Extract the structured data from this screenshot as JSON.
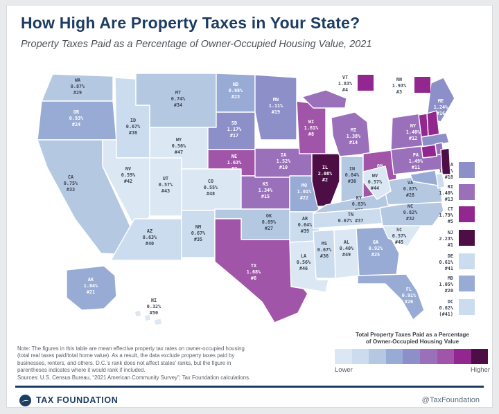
{
  "title": "How High Are Property Taxes in Your State?",
  "subtitle": "Property Taxes Paid as a Percentage of Owner-Occupied Housing Value, 2021",
  "colors": {
    "accent_navy": "#1d3c63",
    "label_dark": "#3d4654",
    "label_light": "#ffffff",
    "scale": [
      "#dbe7f3",
      "#cbdcee",
      "#b5c8e2",
      "#98abd5",
      "#8d90c8",
      "#9a70bb",
      "#a155a8",
      "#92278f",
      "#4c0e44"
    ]
  },
  "chart_data": {
    "type": "heatmap",
    "variant": "us-choropleth-map",
    "title": "How High Are Property Taxes in Your State?",
    "subtitle": "Property Taxes Paid as a Percentage of Owner-Occupied Housing Value, 2021",
    "unit": "percent of owner-occupied housing value",
    "legend": {
      "title_line1": "Total Property Taxes Paid as a Percentage",
      "title_line2": "of Owner-Occupied Housing Value",
      "lower": "Lower",
      "higher": "Higher",
      "steps": 9
    },
    "states": [
      {
        "abbr": "WA",
        "value": "0.87%",
        "rank": "#29",
        "bin": 2
      },
      {
        "abbr": "OR",
        "value": "0.93%",
        "rank": "#24",
        "bin": 3
      },
      {
        "abbr": "CA",
        "value": "0.75%",
        "rank": "#33",
        "bin": 2
      },
      {
        "abbr": "ID",
        "value": "0.67%",
        "rank": "#38",
        "bin": 1
      },
      {
        "abbr": "NV",
        "value": "0.59%",
        "rank": "#42",
        "bin": 0
      },
      {
        "abbr": "UT",
        "value": "0.57%",
        "rank": "#43",
        "bin": 0
      },
      {
        "abbr": "AZ",
        "value": "0.63%",
        "rank": "#40",
        "bin": 1
      },
      {
        "abbr": "MT",
        "value": "0.74%",
        "rank": "#34",
        "bin": 2
      },
      {
        "abbr": "WY",
        "value": "0.56%",
        "rank": "#47",
        "bin": 0
      },
      {
        "abbr": "CO",
        "value": "0.55%",
        "rank": "#48",
        "bin": 0
      },
      {
        "abbr": "NM",
        "value": "0.67%",
        "rank": "#35",
        "bin": 1
      },
      {
        "abbr": "ND",
        "value": "0.98%",
        "rank": "#23",
        "bin": 3
      },
      {
        "abbr": "SD",
        "value": "1.17%",
        "rank": "#17",
        "bin": 4
      },
      {
        "abbr": "NE",
        "value": "1.63%",
        "rank": "#7",
        "bin": 6
      },
      {
        "abbr": "KS",
        "value": "1.34%",
        "rank": "#15",
        "bin": 5
      },
      {
        "abbr": "OK",
        "value": "0.89%",
        "rank": "#27",
        "bin": 2
      },
      {
        "abbr": "TX",
        "value": "1.68%",
        "rank": "#6",
        "bin": 6
      },
      {
        "abbr": "MN",
        "value": "1.11%",
        "rank": "#19",
        "bin": 4
      },
      {
        "abbr": "IA",
        "value": "1.52%",
        "rank": "#10",
        "bin": 5
      },
      {
        "abbr": "MO",
        "value": "1.01%",
        "rank": "#22",
        "bin": 3
      },
      {
        "abbr": "AR",
        "value": "0.64%",
        "rank": "#39",
        "bin": 1
      },
      {
        "abbr": "LA",
        "value": "0.56%",
        "rank": "#46",
        "bin": 0
      },
      {
        "abbr": "WI",
        "value": "1.61%",
        "rank": "#8",
        "bin": 6
      },
      {
        "abbr": "IL",
        "value": "2.08%",
        "rank": "#2",
        "bin": 8
      },
      {
        "abbr": "MS",
        "value": "0.67%",
        "rank": "#36",
        "bin": 1
      },
      {
        "abbr": "MI",
        "value": "1.38%",
        "rank": "#14",
        "bin": 5
      },
      {
        "abbr": "IN",
        "value": "0.84%",
        "rank": "#30",
        "bin": 2
      },
      {
        "abbr": "OH",
        "value": "1.59%",
        "rank": "#9",
        "bin": 6
      },
      {
        "abbr": "KY",
        "value": "0.83%",
        "rank": "#31",
        "bin": 2
      },
      {
        "abbr": "TN",
        "value": "0.67%",
        "rank": "#37",
        "bin": 1,
        "inline": true
      },
      {
        "abbr": "AL",
        "value": "0.40%",
        "rank": "#49",
        "bin": 0
      },
      {
        "abbr": "GA",
        "value": "0.92%",
        "rank": "#25",
        "bin": 3
      },
      {
        "abbr": "FL",
        "value": "0.91%",
        "rank": "#26",
        "bin": 3
      },
      {
        "abbr": "SC",
        "value": "0.57%",
        "rank": "#45",
        "bin": 0
      },
      {
        "abbr": "NC",
        "value": "0.82%",
        "rank": "#32",
        "bin": 2
      },
      {
        "abbr": "VA",
        "value": "0.87%",
        "rank": "#28",
        "bin": 2
      },
      {
        "abbr": "WV",
        "value": "0.57%",
        "rank": "#44",
        "bin": 0
      },
      {
        "abbr": "PA",
        "value": "1.49%",
        "rank": "#11",
        "bin": 5
      },
      {
        "abbr": "NY",
        "value": "1.40%",
        "rank": "#12",
        "bin": 5
      },
      {
        "abbr": "ME",
        "value": "1.24%",
        "rank": "#16",
        "bin": 4
      },
      {
        "abbr": "VT",
        "value": "1.83%",
        "rank": "#4",
        "bin": 7,
        "external": true
      },
      {
        "abbr": "NH",
        "value": "1.93%",
        "rank": "#3",
        "bin": 7,
        "external": true
      },
      {
        "abbr": "MA",
        "value": "1.14%",
        "rank": "#18",
        "bin": 4,
        "external": true
      },
      {
        "abbr": "RI",
        "value": "1.40%",
        "rank": "#13",
        "bin": 5,
        "external": true
      },
      {
        "abbr": "CT",
        "value": "1.79%",
        "rank": "#5",
        "bin": 7,
        "external": true
      },
      {
        "abbr": "NJ",
        "value": "2.23%",
        "rank": "#1",
        "bin": 8,
        "external": true
      },
      {
        "abbr": "DE",
        "value": "0.61%",
        "rank": "#41",
        "bin": 1,
        "external": true
      },
      {
        "abbr": "MD",
        "value": "1.05%",
        "rank": "#20",
        "bin": 3,
        "external": true
      },
      {
        "abbr": "DC",
        "value": "0.62%",
        "rank": "(#41)",
        "bin": 1,
        "external": true
      },
      {
        "abbr": "AK",
        "value": "1.04%",
        "rank": "#21",
        "bin": 3
      },
      {
        "abbr": "HI",
        "value": "0.32%",
        "rank": "#50",
        "bin": 0
      }
    ]
  },
  "note_lines": [
    "Note: The figures in this table are mean effective property tax rates on owner-occupied housing",
    "(total real taxes paid/total home value). As a result, the data exclude property taxes paid by",
    "businesses, renters, and others. D.C.'s rank does not affect states' ranks, but the figure in",
    "parentheses indicates where it would rank if included."
  ],
  "sources_line": "Sources: U.S. Census Bureau, “2021 American Community Survey”; Tax Foundation calculations.",
  "footer": {
    "brand": "TAX FOUNDATION",
    "handle": "@TaxFoundation"
  }
}
